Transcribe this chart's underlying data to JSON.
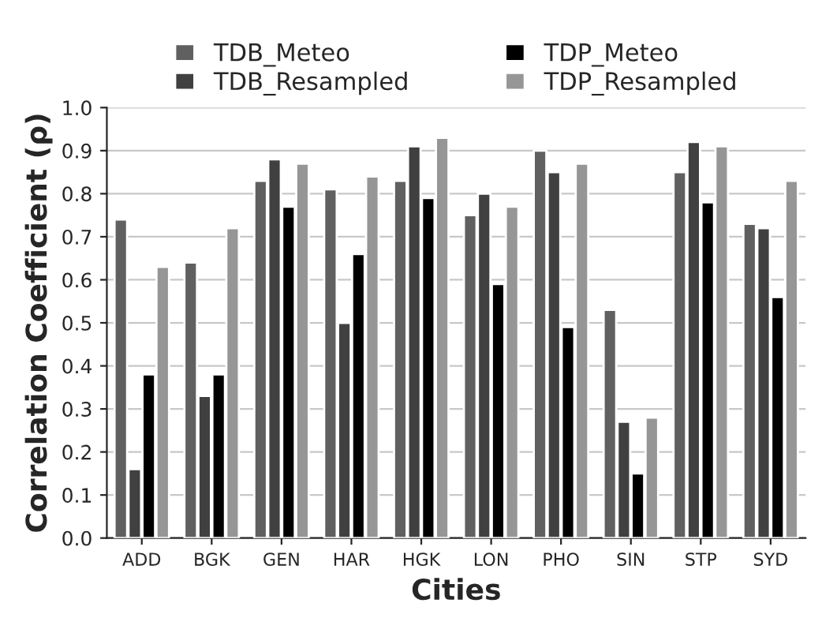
{
  "chart_data": {
    "type": "bar",
    "xlabel": "Cities",
    "ylabel": "Correlation Coefficient (ρ)",
    "categories": [
      "ADD",
      "BGK",
      "GEN",
      "HAR",
      "HGK",
      "LON",
      "PHO",
      "SIN",
      "STP",
      "SYD"
    ],
    "series": [
      {
        "name": "TDB_Meteo",
        "color": "#606060",
        "values": [
          0.74,
          0.64,
          0.83,
          0.81,
          0.83,
          0.75,
          0.9,
          0.53,
          0.85,
          0.73
        ]
      },
      {
        "name": "TDB_Resampled",
        "color": "#404040",
        "values": [
          0.16,
          0.33,
          0.88,
          0.5,
          0.91,
          0.8,
          0.85,
          0.27,
          0.92,
          0.72
        ]
      },
      {
        "name": "TDP_Meteo",
        "color": "#000000",
        "values": [
          0.38,
          0.38,
          0.77,
          0.66,
          0.79,
          0.59,
          0.49,
          0.15,
          0.78,
          0.56
        ]
      },
      {
        "name": "TDP_Resampled",
        "color": "#969696",
        "values": [
          0.63,
          0.72,
          0.87,
          0.84,
          0.93,
          0.77,
          0.87,
          0.28,
          0.91,
          0.83
        ]
      }
    ],
    "ylim": [
      0,
      1.0
    ],
    "yticks": [
      {
        "value": 0,
        "label": "0.0"
      },
      {
        "value": 0.1,
        "label": "0.1"
      },
      {
        "value": 0.2,
        "label": "0.2"
      },
      {
        "value": 0.3,
        "label": "0.3"
      },
      {
        "value": 0.4,
        "label": "0.4"
      },
      {
        "value": 0.5,
        "label": "0.5"
      },
      {
        "value": 0.6,
        "label": "0.6"
      },
      {
        "value": 0.7,
        "label": "0.7"
      },
      {
        "value": 0.8,
        "label": "0.8"
      },
      {
        "value": 0.9,
        "label": "0.9"
      },
      {
        "value": 1.0,
        "label": "1.0"
      }
    ],
    "grid": "y",
    "legend": "top"
  }
}
